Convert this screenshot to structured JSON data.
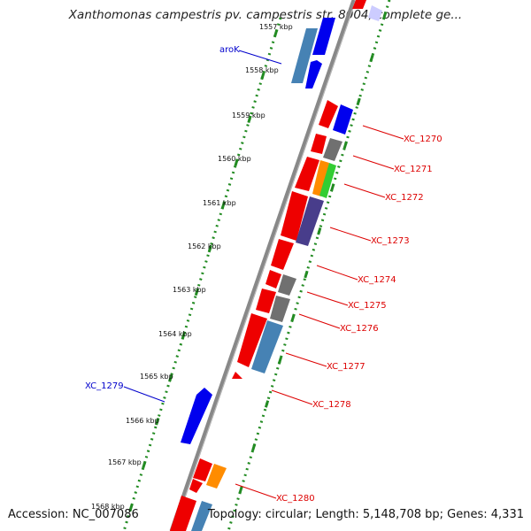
{
  "title": "Xanthomonas campestris pv. campestris str. 8004, complete ge...",
  "footer": {
    "accession": "Accession: NC_007086",
    "topology": "Topology: circular; Length: 5,148,708 bp; Genes: 4,331"
  },
  "colors": {
    "forward_gene": "#0000ee",
    "reverse_gene": "#ee0000",
    "label_forward": "#0000cc",
    "label_reverse": "#dd0000",
    "ticks": "#228b22",
    "backbone": "#888888"
  },
  "ticks": [
    "1557 kbp",
    "1558 kbp",
    "1559 kbp",
    "1560 kbp",
    "1561 kbp",
    "1562 kbp",
    "1563 kbp",
    "1564 kbp",
    "1565 kbp",
    "1566 kbp",
    "1567 kbp",
    "1568 kbp"
  ],
  "labels": {
    "left": [
      "aroK",
      "XC_1279"
    ],
    "right": [
      "XC_1270",
      "XC_1271",
      "XC_1272",
      "XC_1273",
      "XC_1274",
      "XC_1275",
      "XC_1276",
      "XC_1277",
      "XC_1278",
      "XC_1280"
    ]
  }
}
